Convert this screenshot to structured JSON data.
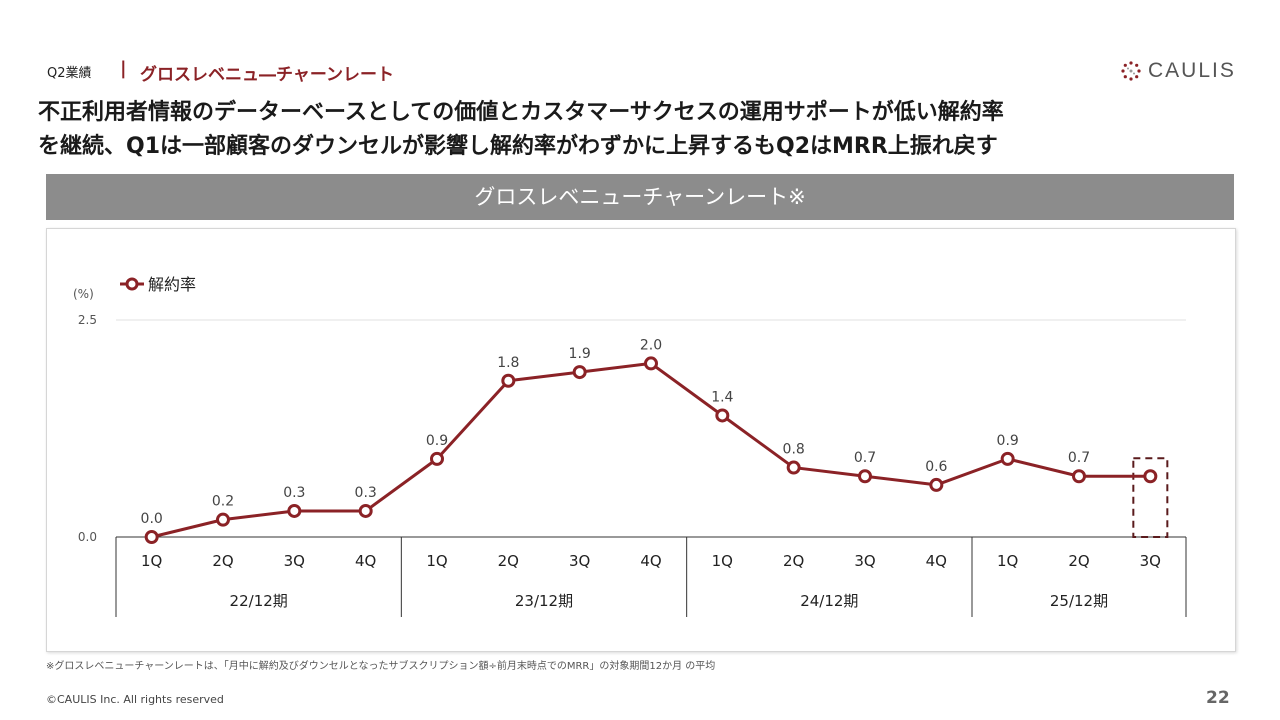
{
  "header": {
    "section": "Q2業績",
    "separator": "|",
    "title": "グロスレベニュ―チャーンレート",
    "logo_text": "CAULIS"
  },
  "headline": {
    "line1": "不正利用者情報のデーターベースとしての価値とカスタマーサクセスの運用サポートが低い解約率",
    "line2": "を継続、Q1は一部顧客のダウンセルが影響し解約率がわずかに上昇するもQ2はMRR上振れ戻す"
  },
  "banner": {
    "title": "グロスレベニューチャーンレート※"
  },
  "chart_data": {
    "type": "line",
    "legend_position": "top-left",
    "ylabel": "(%)",
    "ylim": [
      0,
      2.5
    ],
    "yticks": [
      "0.0",
      "2.5"
    ],
    "grid": false,
    "categories": [
      "1Q",
      "2Q",
      "3Q",
      "4Q",
      "1Q",
      "2Q",
      "3Q",
      "4Q",
      "1Q",
      "2Q",
      "3Q",
      "4Q",
      "1Q",
      "2Q",
      "3Q"
    ],
    "groups": [
      {
        "label": "22/12期",
        "count": 4
      },
      {
        "label": "23/12期",
        "count": 4
      },
      {
        "label": "24/12期",
        "count": 4
      },
      {
        "label": "25/12期",
        "count": 3
      }
    ],
    "series": [
      {
        "name": "解約率",
        "color": "#8b2226",
        "values": [
          0.0,
          0.2,
          0.3,
          0.3,
          0.9,
          1.8,
          1.9,
          2.0,
          1.4,
          0.8,
          0.7,
          0.6,
          0.9,
          0.7,
          0.7
        ],
        "labels": [
          "0.0",
          "0.2",
          "0.3",
          "0.3",
          "0.9",
          "1.8",
          "1.9",
          "2.0",
          "1.4",
          "0.8",
          "0.7",
          "0.6",
          "0.9",
          "0.7",
          ""
        ]
      }
    ],
    "highlight_index": 14
  },
  "footnote": "※グロスレベニューチャーンレートは、「月中に解約及びダウンセルとなったサブスクリプション額÷前月末時点でのMRR」の対象期間12か月 の平均",
  "footer": {
    "copyright": "©CAULIS Inc. All rights reserved",
    "page": "22"
  }
}
